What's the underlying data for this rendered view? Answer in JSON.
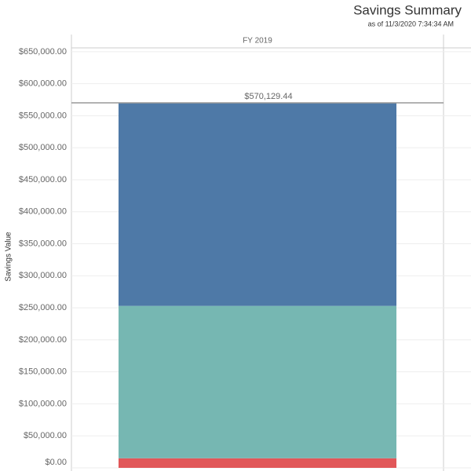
{
  "chart_data": {
    "type": "stacked_bar",
    "title": "Savings Summary",
    "subtitle": "as of 11/3/2020 7:34:34 AM",
    "y_label": "Savings Value",
    "categories": [
      "FY 2019"
    ],
    "series": [
      {
        "color": "#e15759",
        "values": [
          15000
        ]
      },
      {
        "color": "#76b7b2",
        "values": [
          238000
        ]
      },
      {
        "color": "#4e79a7",
        "values": [
          317129.44
        ]
      }
    ],
    "total": 570129.44,
    "total_label": "$570,129.44",
    "ylim": [
      0,
      656000
    ],
    "yticks": [
      {
        "value": 0,
        "label": "$0.00"
      },
      {
        "value": 50000,
        "label": "$50,000.00"
      },
      {
        "value": 100000,
        "label": "$100,000.00"
      },
      {
        "value": 150000,
        "label": "$150,000.00"
      },
      {
        "value": 200000,
        "label": "$200,000.00"
      },
      {
        "value": 250000,
        "label": "$250,000.00"
      },
      {
        "value": 300000,
        "label": "$300,000.00"
      },
      {
        "value": 350000,
        "label": "$350,000.00"
      },
      {
        "value": 400000,
        "label": "$400,000.00"
      },
      {
        "value": 450000,
        "label": "$450,000.00"
      },
      {
        "value": 500000,
        "label": "$500,000.00"
      },
      {
        "value": 550000,
        "label": "$550,000.00"
      },
      {
        "value": 600000,
        "label": "$600,000.00"
      },
      {
        "value": 650000,
        "label": "$650,000.00"
      }
    ],
    "grid": true
  }
}
